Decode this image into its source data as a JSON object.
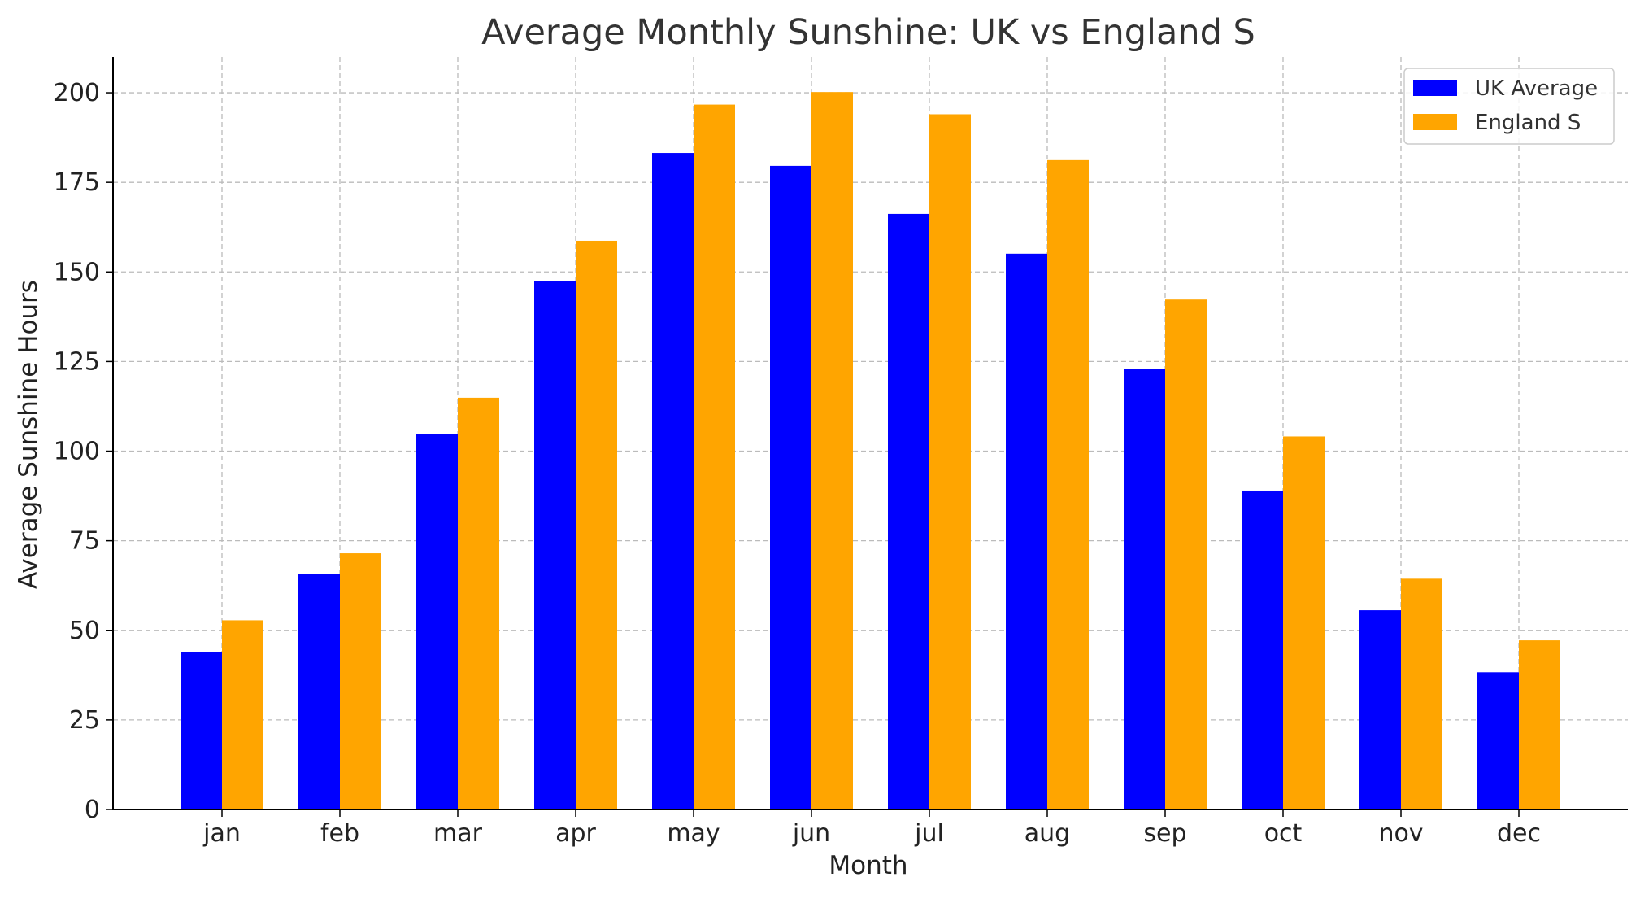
{
  "colors": {
    "uk_average": "#0000ff",
    "england_s": "#ffa500",
    "grid": "#bbbbbb",
    "axis": "#000000"
  },
  "chart_data": {
    "type": "bar",
    "title": "Average Monthly Sunshine: UK vs England S",
    "xlabel": "Month",
    "ylabel": "Average Sunshine Hours",
    "categories": [
      "jan",
      "feb",
      "mar",
      "apr",
      "may",
      "jun",
      "jul",
      "aug",
      "sep",
      "oct",
      "nov",
      "dec"
    ],
    "series": [
      {
        "name": "UK Average",
        "color": "#0000ff",
        "values": [
          44.0,
          65.7,
          104.8,
          147.5,
          183.2,
          179.6,
          166.2,
          155.1,
          122.9,
          89.0,
          55.6,
          38.3
        ]
      },
      {
        "name": "England S",
        "color": "#ffa500",
        "values": [
          52.8,
          71.5,
          114.9,
          158.7,
          196.7,
          200.2,
          194.0,
          181.2,
          142.3,
          104.1,
          64.4,
          47.2
        ]
      }
    ],
    "ylim": [
      0,
      210
    ],
    "yticks": [
      "0",
      "25",
      "50",
      "75",
      "100",
      "125",
      "150",
      "175",
      "200"
    ],
    "grid": true,
    "legend_position": "top-right"
  }
}
